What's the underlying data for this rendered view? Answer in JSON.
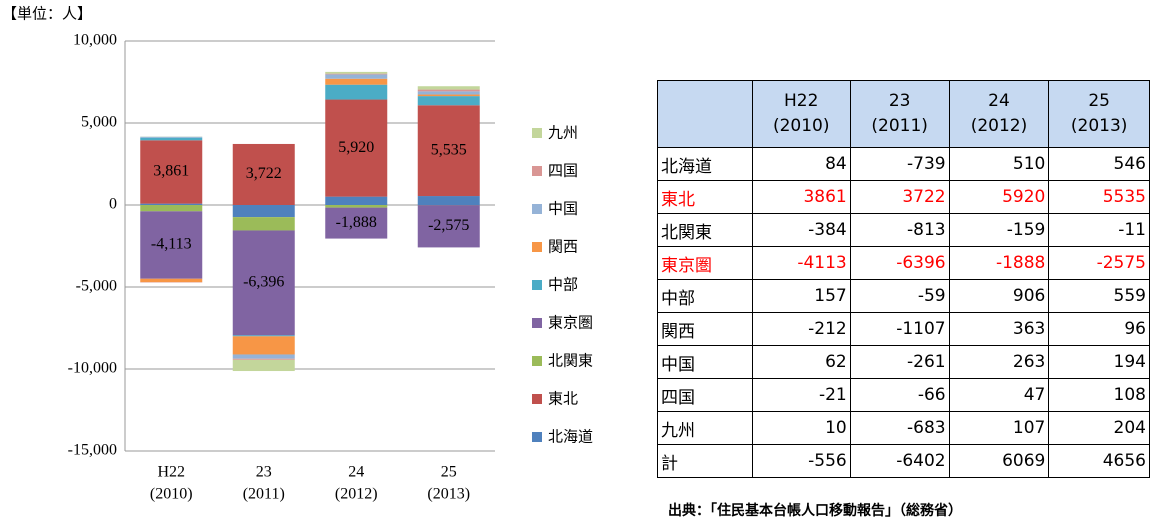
{
  "chart_data": {
    "type": "stacked_bar",
    "unit_label": "【単位：人】",
    "categories": [
      "H22",
      "23",
      "24",
      "25"
    ],
    "category_sublabels": [
      "(2010)",
      "(2011)",
      "(2012)",
      "(2013)"
    ],
    "ylim": [
      -15000,
      10000
    ],
    "yticks": [
      {
        "value": -15000,
        "label": "-15,000"
      },
      {
        "value": -10000,
        "label": "-10,000"
      },
      {
        "value": -5000,
        "label": "-5,000"
      },
      0,
      {
        "value": 5000,
        "label": "5,000"
      },
      {
        "value": 10000,
        "label": "10,000"
      }
    ],
    "grid": true,
    "series": [
      {
        "name": "北海道",
        "color": "#4f81bd",
        "values": [
          84,
          -739,
          510,
          546
        ]
      },
      {
        "name": "東北",
        "color": "#c0504d",
        "values": [
          3861,
          3722,
          5920,
          5535
        ],
        "value_labels": [
          "3,861",
          "3,722",
          "5,920",
          "5,535"
        ]
      },
      {
        "name": "北関東",
        "color": "#9bbb59",
        "values": [
          -384,
          -813,
          -159,
          -11
        ]
      },
      {
        "name": "東京圏",
        "color": "#8064a2",
        "values": [
          -4113,
          -6396,
          -1888,
          -2575
        ],
        "value_labels": [
          "-4,113",
          "-6,396",
          "-1,888",
          "-2,575"
        ]
      },
      {
        "name": "中部",
        "color": "#4bacc6",
        "values": [
          157,
          -59,
          906,
          559
        ]
      },
      {
        "name": "関西",
        "color": "#f79646",
        "values": [
          -212,
          -1107,
          363,
          96
        ]
      },
      {
        "name": "中国",
        "color": "#95b3d7",
        "values": [
          62,
          -261,
          263,
          194
        ]
      },
      {
        "name": "四国",
        "color": "#d99694",
        "values": [
          -21,
          -66,
          47,
          108
        ]
      },
      {
        "name": "九州",
        "color": "#c3d69b",
        "values": [
          10,
          -683,
          107,
          204
        ]
      }
    ]
  },
  "table": {
    "highlight_color": "#ff0000",
    "header_color": "#c6d9f1",
    "columns": [
      {
        "label": "H22",
        "sub": "(2010)"
      },
      {
        "label": "23",
        "sub": "(2011)"
      },
      {
        "label": "24",
        "sub": "(2012)"
      },
      {
        "label": "25",
        "sub": "(2013)"
      }
    ],
    "rows": [
      {
        "label": "北海道",
        "values": [
          84,
          -739,
          510,
          546
        ]
      },
      {
        "label": "東北",
        "values": [
          3861,
          3722,
          5920,
          5535
        ],
        "highlight": true
      },
      {
        "label": "北関東",
        "values": [
          -384,
          -813,
          -159,
          -11
        ]
      },
      {
        "label": "東京圏",
        "values": [
          -4113,
          -6396,
          -1888,
          -2575
        ],
        "highlight": true
      },
      {
        "label": "中部",
        "values": [
          157,
          -59,
          906,
          559
        ]
      },
      {
        "label": "関西",
        "values": [
          -212,
          -1107,
          363,
          96
        ]
      },
      {
        "label": "中国",
        "values": [
          62,
          -261,
          263,
          194
        ]
      },
      {
        "label": "四国",
        "values": [
          -21,
          -66,
          47,
          108
        ]
      },
      {
        "label": "九州",
        "values": [
          10,
          -683,
          107,
          204
        ]
      },
      {
        "label": "計",
        "values": [
          -556,
          -6402,
          6069,
          4656
        ]
      }
    ],
    "source": "出典：「住民基本台帳人口移動報告」（総務省）"
  }
}
